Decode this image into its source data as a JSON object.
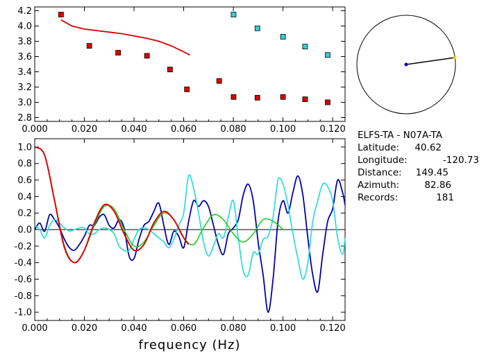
{
  "chart_data": [
    {
      "type": "scatter",
      "xlabel": "",
      "ylabel": "",
      "xlim": [
        0.0,
        0.125
      ],
      "ylim": [
        2.75,
        4.25
      ],
      "xticks": [
        "0.000",
        "0.020",
        "0.040",
        "0.060",
        "0.080",
        "0.100",
        "0.120"
      ],
      "yticks": [
        "2.8",
        "3.0",
        "3.2",
        "3.4",
        "3.6",
        "3.8",
        "4.0",
        "4.2"
      ],
      "points_red": [
        [
          0.0106,
          4.15
        ],
        [
          0.022,
          3.74
        ],
        [
          0.0336,
          3.65
        ],
        [
          0.0452,
          3.61
        ],
        [
          0.0545,
          3.43
        ],
        [
          0.0613,
          3.17
        ],
        [
          0.0743,
          3.28
        ],
        [
          0.0801,
          3.07
        ],
        [
          0.0897,
          3.06
        ],
        [
          0.1,
          3.07
        ],
        [
          0.1089,
          3.04
        ],
        [
          0.118,
          3.0
        ]
      ],
      "points_cyan": [
        [
          0.0801,
          4.15
        ],
        [
          0.0897,
          3.97
        ],
        [
          0.1,
          3.86
        ],
        [
          0.1089,
          3.73
        ],
        [
          0.118,
          3.62
        ]
      ],
      "curve_red": [
        [
          0.0106,
          4.08
        ],
        [
          0.015,
          4.0
        ],
        [
          0.02,
          3.96
        ],
        [
          0.025,
          3.94
        ],
        [
          0.03,
          3.92
        ],
        [
          0.035,
          3.9
        ],
        [
          0.04,
          3.87
        ],
        [
          0.045,
          3.84
        ],
        [
          0.05,
          3.8
        ],
        [
          0.055,
          3.74
        ],
        [
          0.0595,
          3.67
        ],
        [
          0.0625,
          3.62
        ]
      ],
      "colors": {
        "red": "#dd0000",
        "cyan": "#33ccdd",
        "curve": "#dd0000"
      }
    },
    {
      "type": "line",
      "xlabel": "frequency (Hz)",
      "ylabel": "",
      "xlim": [
        0.0,
        0.125
      ],
      "ylim": [
        -1.1,
        1.1
      ],
      "xticks": [
        "0.000",
        "0.020",
        "0.040",
        "0.060",
        "0.080",
        "0.100",
        "0.120"
      ],
      "yticks": [
        "1.0",
        "0.8",
        "0.6",
        "0.4",
        "0.2",
        "0.0",
        "-0.2",
        "-0.4",
        "-0.6",
        "-0.8",
        "-1.0"
      ],
      "series": [
        {
          "color": "#0000aa",
          "x": [
            0.0,
            0.002,
            0.004,
            0.006,
            0.008,
            0.01,
            0.012,
            0.014,
            0.016,
            0.018,
            0.02,
            0.022,
            0.024,
            0.026,
            0.028,
            0.03,
            0.032,
            0.034,
            0.036,
            0.038,
            0.04,
            0.042,
            0.044,
            0.046,
            0.048,
            0.05,
            0.052,
            0.054,
            0.056,
            0.058,
            0.06,
            0.062,
            0.064,
            0.066,
            0.068,
            0.07,
            0.072,
            0.074,
            0.076,
            0.078,
            0.08,
            0.082,
            0.084,
            0.086,
            0.088,
            0.09,
            0.092,
            0.094,
            0.096,
            0.098,
            0.1,
            0.102,
            0.104,
            0.106,
            0.108,
            0.11,
            0.112,
            0.114,
            0.116,
            0.118,
            0.12,
            0.122,
            0.124,
            0.125
          ],
          "y": [
            0.0,
            0.08,
            -0.02,
            0.18,
            0.12,
            0.02,
            -0.12,
            -0.22,
            -0.25,
            -0.18,
            -0.08,
            0.05,
            0.05,
            0.15,
            0.18,
            0.05,
            0.02,
            0.12,
            0.02,
            -0.32,
            -0.35,
            -0.12,
            0.05,
            0.1,
            0.22,
            0.32,
            0.05,
            -0.18,
            -0.02,
            -0.08,
            -0.22,
            0.1,
            0.35,
            0.28,
            0.35,
            0.28,
            0.05,
            -0.18,
            -0.3,
            -0.05,
            0.02,
            0.12,
            0.42,
            0.55,
            0.35,
            -0.15,
            -0.55,
            -1.0,
            -0.6,
            0.1,
            0.35,
            0.2,
            0.45,
            0.65,
            0.42,
            -0.1,
            -0.55,
            -0.75,
            -0.3,
            0.1,
            0.25,
            0.6,
            0.45,
            0.3
          ]
        },
        {
          "color": "#33dddd",
          "x": [
            0.0,
            0.002,
            0.004,
            0.006,
            0.008,
            0.01,
            0.012,
            0.014,
            0.016,
            0.018,
            0.02,
            0.022,
            0.024,
            0.026,
            0.028,
            0.03,
            0.032,
            0.034,
            0.036,
            0.038,
            0.04,
            0.042,
            0.044,
            0.046,
            0.048,
            0.05,
            0.052,
            0.054,
            0.056,
            0.058,
            0.06,
            0.062,
            0.064,
            0.066,
            0.068,
            0.07,
            0.072,
            0.074,
            0.076,
            0.078,
            0.08,
            0.082,
            0.084,
            0.086,
            0.088,
            0.09,
            0.092,
            0.094,
            0.096,
            0.098,
            0.1,
            0.102,
            0.104,
            0.106,
            0.108,
            0.11,
            0.112,
            0.114,
            0.116,
            0.118,
            0.12,
            0.122,
            0.124,
            0.125
          ],
          "y": [
            0.05,
            0.0,
            -0.1,
            0.05,
            0.12,
            0.08,
            0.02,
            -0.02,
            0.0,
            0.02,
            0.02,
            -0.05,
            -0.05,
            0.0,
            0.02,
            0.0,
            -0.05,
            -0.2,
            -0.25,
            -0.25,
            -0.12,
            0.0,
            0.02,
            0.0,
            -0.05,
            -0.1,
            -0.15,
            -0.22,
            -0.12,
            0.05,
            0.2,
            0.65,
            0.5,
            0.2,
            -0.15,
            -0.32,
            -0.2,
            -0.05,
            -0.1,
            0.15,
            0.35,
            -0.1,
            -0.5,
            -0.55,
            -0.28,
            -0.3,
            -0.12,
            -0.08,
            0.15,
            0.6,
            0.55,
            0.3,
            -0.05,
            -0.35,
            -0.6,
            -0.4,
            0.1,
            0.35,
            0.55,
            0.52,
            0.35,
            -0.1,
            -0.3,
            -0.1
          ]
        },
        {
          "color": "#11cc11",
          "x": [
            0.0,
            0.004,
            0.008,
            0.012,
            0.016,
            0.02,
            0.024,
            0.028,
            0.032,
            0.036,
            0.04,
            0.044,
            0.048,
            0.052,
            0.056,
            0.06,
            0.064,
            0.068,
            0.072,
            0.076,
            0.08,
            0.084,
            0.088,
            0.092,
            0.096,
            0.1
          ],
          "y": [
            1.0,
            0.9,
            0.35,
            -0.2,
            -0.4,
            -0.25,
            0.05,
            0.28,
            0.25,
            0.0,
            -0.2,
            -0.15,
            0.05,
            0.2,
            0.12,
            -0.1,
            -0.18,
            0.02,
            0.18,
            0.12,
            -0.05,
            -0.15,
            -0.05,
            0.12,
            0.1,
            0.0
          ]
        },
        {
          "color": "#dd0000",
          "x": [
            0.0,
            0.004,
            0.008,
            0.012,
            0.016,
            0.02,
            0.024,
            0.028,
            0.032,
            0.036,
            0.04,
            0.044,
            0.048,
            0.052,
            0.056,
            0.06,
            0.062
          ],
          "y": [
            1.0,
            0.9,
            0.35,
            -0.22,
            -0.4,
            -0.25,
            0.08,
            0.3,
            0.22,
            -0.05,
            -0.25,
            -0.18,
            0.08,
            0.22,
            0.12,
            -0.1,
            -0.18
          ]
        }
      ]
    }
  ],
  "map": {
    "center_color": "#0000aa",
    "station_color": "#eecc00",
    "azimuth": 82.86
  },
  "info": {
    "title": "ELFS-TA  -  N07A-TA",
    "lines": [
      {
        "label": "Latitude:",
        "value": "40.62"
      },
      {
        "label": "Longitude:",
        "value": "-120.73"
      },
      {
        "label": "Distance:",
        "value": "149.45"
      },
      {
        "label": "Azimuth:",
        "value": "82.86"
      },
      {
        "label": "Records:",
        "value": "181"
      }
    ]
  }
}
